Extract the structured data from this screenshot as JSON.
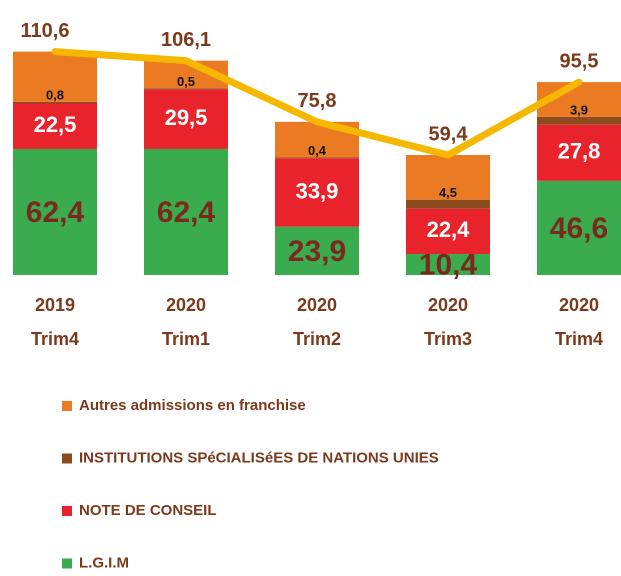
{
  "chart_data": {
    "type": "bar",
    "stacked": true,
    "categories": [
      [
        "2019",
        "Trim4"
      ],
      [
        "2020",
        "Trim1"
      ],
      [
        "2020",
        "Trim2"
      ],
      [
        "2020",
        "Trim3"
      ],
      [
        "2020",
        "Trim4"
      ]
    ],
    "series": [
      {
        "name": "L.G.I.M",
        "color": "#3aab4e",
        "values": [
          62.4,
          62.4,
          23.9,
          10.4,
          46.6
        ],
        "value_labels": [
          "62,4",
          "62,4",
          "23,9",
          "10,4",
          "46,6"
        ]
      },
      {
        "name": "NOTE DE CONSEIL",
        "color": "#e8232b",
        "values": [
          22.5,
          29.5,
          33.9,
          22.4,
          27.8
        ],
        "value_labels": [
          "22,5",
          "29,5",
          "33,9",
          "22,4",
          "27,8"
        ]
      },
      {
        "name": "INSTITUTIONS SPéCIALISéES DE NATIONS UNIES",
        "color": "#8c4a1f",
        "values": [
          0.8,
          0.5,
          0.4,
          4.5,
          3.9
        ],
        "value_labels": [
          "0,8",
          "0,5",
          "0,4",
          "4,5",
          "3,9"
        ]
      },
      {
        "name": "Autres admissions en franchise",
        "color": "#ea7b23",
        "values": [
          24.9,
          13.7,
          17.6,
          22.1,
          17.2
        ]
      }
    ],
    "totals": {
      "color": "#f5b700",
      "values": [
        110.6,
        106.1,
        75.8,
        59.4,
        95.5
      ],
      "value_labels": [
        "110,6",
        "106,1",
        "75,8",
        "59,4",
        "95,5"
      ]
    }
  }
}
